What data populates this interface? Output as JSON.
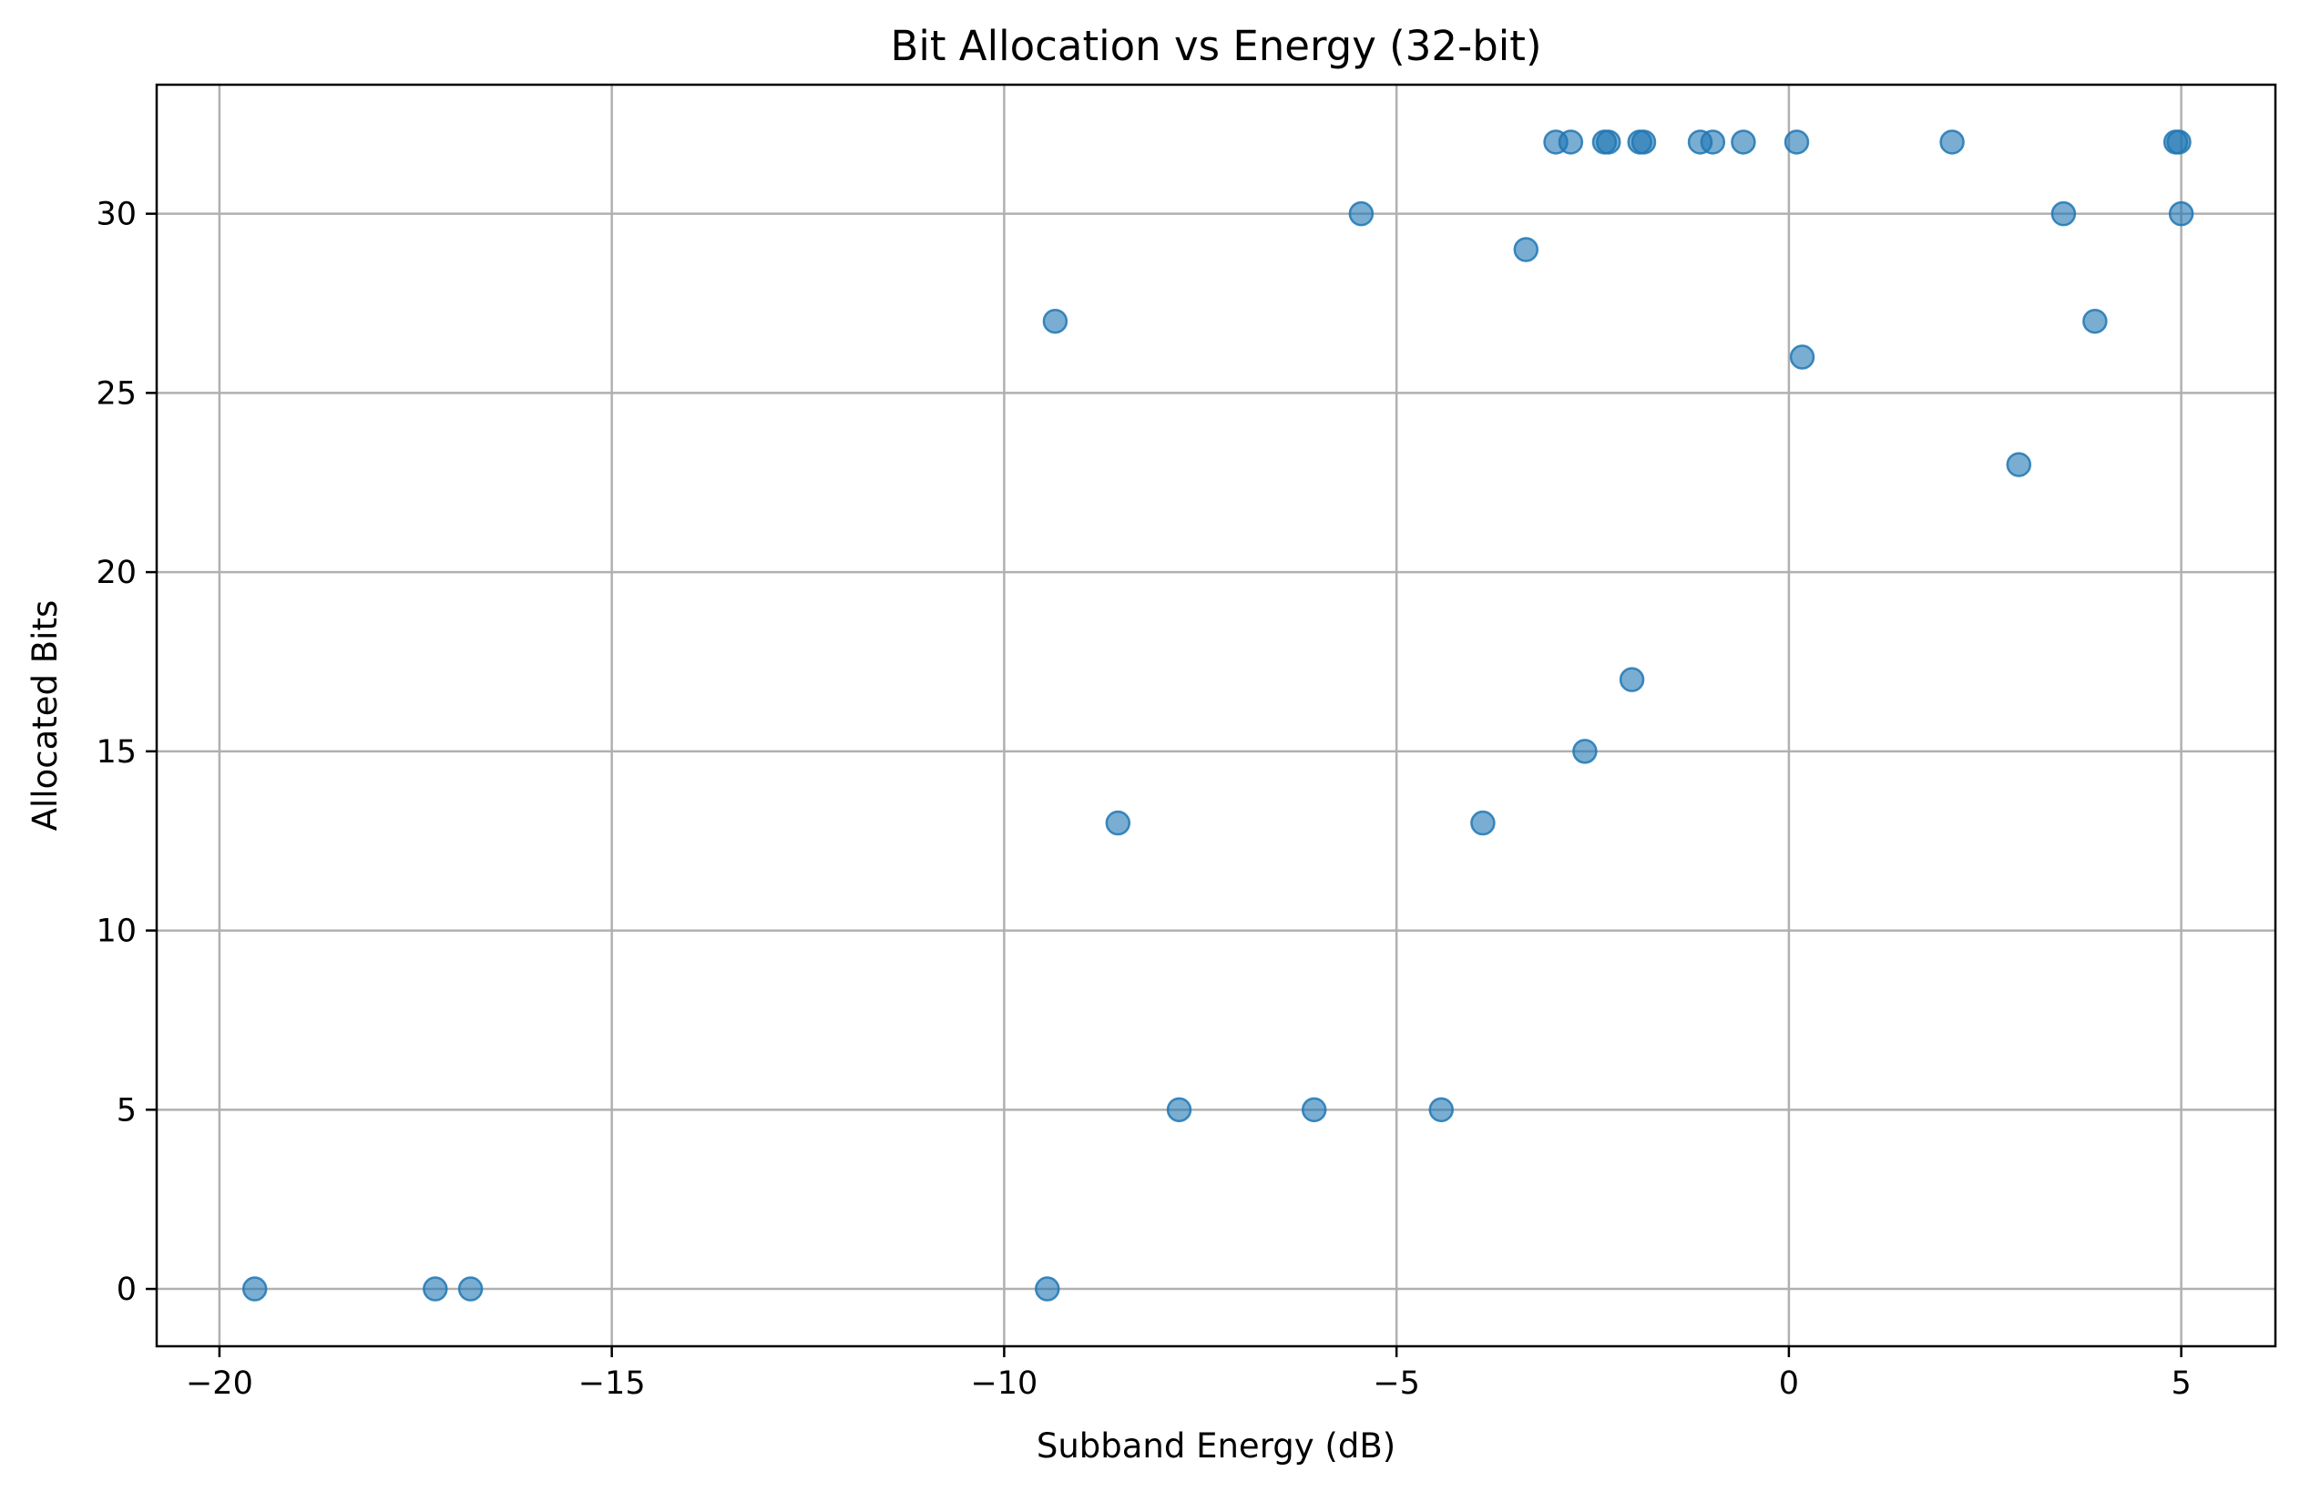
{
  "chart_data": {
    "type": "scatter",
    "title": "Bit Allocation vs Energy (32-bit)",
    "xlabel": "Subband Energy (dB)",
    "ylabel": "Allocated Bits",
    "xlim": [
      -20.8,
      6.2
    ],
    "ylim": [
      -1.6,
      33.6
    ],
    "xticks": [
      -20,
      -15,
      -10,
      -5,
      0,
      5
    ],
    "xtick_labels": [
      "−20",
      "−15",
      "−10",
      "−5",
      "0",
      "5"
    ],
    "yticks": [
      0,
      5,
      10,
      15,
      20,
      25,
      30
    ],
    "ytick_labels": [
      "0",
      "5",
      "10",
      "15",
      "20",
      "25",
      "30"
    ],
    "grid": true,
    "legend": "none",
    "marker_color": "#1f77b4",
    "marker_alpha": 0.6,
    "points": [
      {
        "x": -19.55,
        "y": 0
      },
      {
        "x": -17.25,
        "y": 0
      },
      {
        "x": -16.8,
        "y": 0
      },
      {
        "x": -9.45,
        "y": 0
      },
      {
        "x": -9.35,
        "y": 27
      },
      {
        "x": -8.55,
        "y": 13
      },
      {
        "x": -7.77,
        "y": 5
      },
      {
        "x": -6.05,
        "y": 5
      },
      {
        "x": -5.45,
        "y": 30
      },
      {
        "x": -4.43,
        "y": 5
      },
      {
        "x": -3.9,
        "y": 13
      },
      {
        "x": -3.35,
        "y": 29
      },
      {
        "x": -2.97,
        "y": 32
      },
      {
        "x": -2.78,
        "y": 32
      },
      {
        "x": -2.6,
        "y": 15
      },
      {
        "x": -2.35,
        "y": 32
      },
      {
        "x": -2.3,
        "y": 32
      },
      {
        "x": -2.0,
        "y": 17
      },
      {
        "x": -1.9,
        "y": 32
      },
      {
        "x": -1.85,
        "y": 32
      },
      {
        "x": -1.13,
        "y": 32
      },
      {
        "x": -0.97,
        "y": 32
      },
      {
        "x": -0.58,
        "y": 32
      },
      {
        "x": 0.1,
        "y": 32
      },
      {
        "x": 0.17,
        "y": 26
      },
      {
        "x": 2.08,
        "y": 32
      },
      {
        "x": 2.93,
        "y": 23
      },
      {
        "x": 3.5,
        "y": 30
      },
      {
        "x": 3.9,
        "y": 27
      },
      {
        "x": 4.93,
        "y": 32
      },
      {
        "x": 4.97,
        "y": 32
      },
      {
        "x": 5.0,
        "y": 30
      }
    ]
  }
}
